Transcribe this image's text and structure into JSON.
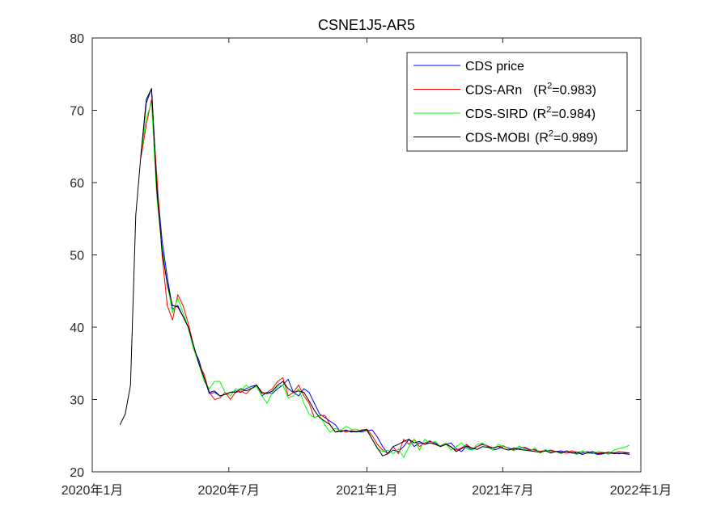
{
  "chart_data": {
    "type": "line",
    "title": "CSNE1J5-AR5",
    "xlabel": "",
    "ylabel": "",
    "ylim": [
      20,
      80
    ],
    "yticks": [
      20,
      30,
      40,
      50,
      60,
      70,
      80
    ],
    "xlim": [
      "2020-01-01",
      "2022-01-01"
    ],
    "xticks": [
      {
        "date": "2020-01-01",
        "label": "2020年1月"
      },
      {
        "date": "2020-07-01",
        "label": "2020年7月"
      },
      {
        "date": "2021-01-01",
        "label": "2021年1月"
      },
      {
        "date": "2021-07-01",
        "label": "2021年7月"
      },
      {
        "date": "2022-01-01",
        "label": "2022年1月"
      }
    ],
    "grid": false,
    "legend_position": "top-right",
    "series": [
      {
        "name": "CDS price",
        "r2": "",
        "color": "#0000ff",
        "x": [
          "2020-03-06",
          "2020-03-13",
          "2020-03-20",
          "2020-03-27",
          "2020-04-03",
          "2020-04-10",
          "2020-04-17",
          "2020-04-24",
          "2020-05-01",
          "2020-05-08",
          "2020-05-15",
          "2020-05-22",
          "2020-05-29",
          "2020-06-05",
          "2020-06-12",
          "2020-06-19",
          "2020-06-26",
          "2020-07-03",
          "2020-07-10",
          "2020-07-17",
          "2020-07-24",
          "2020-07-31",
          "2020-08-07",
          "2020-08-14",
          "2020-08-21",
          "2020-08-28",
          "2020-09-04",
          "2020-09-11",
          "2020-09-18",
          "2020-09-25",
          "2020-10-02",
          "2020-10-09",
          "2020-10-16",
          "2020-10-23",
          "2020-10-30",
          "2020-11-06",
          "2020-11-13",
          "2020-11-20",
          "2020-11-27",
          "2020-12-04",
          "2020-12-11",
          "2020-12-18",
          "2020-12-25",
          "2021-01-01",
          "2021-01-08",
          "2021-01-15",
          "2021-01-22",
          "2021-01-29",
          "2021-02-05",
          "2021-02-12",
          "2021-02-19",
          "2021-02-26",
          "2021-03-05",
          "2021-03-12",
          "2021-03-19",
          "2021-03-26",
          "2021-04-02",
          "2021-04-09",
          "2021-04-16",
          "2021-04-23",
          "2021-04-30",
          "2021-05-07",
          "2021-05-14",
          "2021-05-21",
          "2021-05-28",
          "2021-06-04",
          "2021-06-11",
          "2021-06-18",
          "2021-06-25",
          "2021-07-02",
          "2021-07-09",
          "2021-07-16",
          "2021-07-23",
          "2021-07-30",
          "2021-08-06",
          "2021-08-13",
          "2021-08-20",
          "2021-08-27",
          "2021-09-03",
          "2021-09-10",
          "2021-09-17",
          "2021-09-24",
          "2021-10-01",
          "2021-10-08",
          "2021-10-15",
          "2021-10-22",
          "2021-10-29",
          "2021-11-05",
          "2021-11-12",
          "2021-11-19",
          "2021-11-26",
          "2021-12-03",
          "2021-12-10",
          "2021-12-17"
        ],
        "values": [
          64.0,
          71.0,
          73.0,
          60.0,
          52.0,
          47.0,
          42.5,
          43.0,
          41.5,
          40.0,
          37.0,
          35.5,
          33.0,
          30.8,
          31.0,
          30.5,
          30.7,
          31.0,
          31.2,
          31.0,
          31.5,
          31.8,
          32.0,
          30.5,
          31.0,
          30.8,
          31.5,
          32.0,
          32.8,
          31.0,
          30.5,
          31.5,
          31.0,
          29.5,
          28.0,
          27.5,
          27.0,
          26.5,
          25.5,
          25.8,
          25.5,
          25.6,
          25.5,
          25.7,
          25.8,
          24.8,
          23.5,
          22.5,
          23.0,
          22.8,
          23.5,
          24.5,
          23.5,
          24.0,
          23.8,
          24.2,
          24.0,
          23.5,
          23.8,
          24.0,
          23.2,
          22.8,
          23.5,
          23.0,
          23.5,
          23.8,
          23.5,
          23.0,
          23.2,
          23.5,
          23.3,
          23.0,
          23.2,
          23.4,
          23.1,
          23.0,
          22.8,
          22.9,
          23.0,
          22.8,
          22.9,
          22.6,
          22.7,
          22.5,
          22.6,
          22.8,
          22.6,
          22.4,
          22.5,
          22.7,
          22.5,
          22.6,
          22.5,
          22.4
        ]
      },
      {
        "name": "CDS-ARn",
        "r2": "(R²=0.983)",
        "color": "#ff0000",
        "x": [
          "2020-03-06",
          "2020-03-13",
          "2020-03-20",
          "2020-03-27",
          "2020-04-03",
          "2020-04-10",
          "2020-04-17",
          "2020-04-24",
          "2020-05-01",
          "2020-05-08",
          "2020-05-15",
          "2020-05-22",
          "2020-05-29",
          "2020-06-05",
          "2020-06-12",
          "2020-06-19",
          "2020-06-26",
          "2020-07-03",
          "2020-07-10",
          "2020-07-17",
          "2020-07-24",
          "2020-07-31",
          "2020-08-07",
          "2020-08-14",
          "2020-08-21",
          "2020-08-28",
          "2020-09-04",
          "2020-09-11",
          "2020-09-18",
          "2020-09-25",
          "2020-10-02",
          "2020-10-09",
          "2020-10-16",
          "2020-10-23",
          "2020-10-30",
          "2020-11-06",
          "2020-11-13",
          "2020-11-20",
          "2020-11-27",
          "2020-12-04",
          "2020-12-11",
          "2020-12-18",
          "2020-12-25",
          "2021-01-01",
          "2021-01-08",
          "2021-01-15",
          "2021-01-22",
          "2021-01-29",
          "2021-02-05",
          "2021-02-12",
          "2021-02-19",
          "2021-02-26",
          "2021-03-05",
          "2021-03-12",
          "2021-03-19",
          "2021-03-26",
          "2021-04-02",
          "2021-04-09",
          "2021-04-16",
          "2021-04-23",
          "2021-04-30",
          "2021-05-07",
          "2021-05-14",
          "2021-05-21",
          "2021-05-28",
          "2021-06-04",
          "2021-06-11",
          "2021-06-18",
          "2021-06-25",
          "2021-07-02",
          "2021-07-09",
          "2021-07-16",
          "2021-07-23",
          "2021-07-30",
          "2021-08-06",
          "2021-08-13",
          "2021-08-20",
          "2021-08-27",
          "2021-09-03",
          "2021-09-10",
          "2021-09-17",
          "2021-09-24",
          "2021-10-01",
          "2021-10-08",
          "2021-10-15",
          "2021-10-22",
          "2021-10-29",
          "2021-11-05",
          "2021-11-12",
          "2021-11-19",
          "2021-11-26",
          "2021-12-03",
          "2021-12-10",
          "2021-12-17"
        ],
        "values": [
          63.5,
          68.0,
          71.5,
          61.0,
          50.0,
          43.0,
          41.0,
          44.5,
          43.0,
          40.5,
          37.5,
          35.0,
          33.5,
          31.0,
          30.0,
          30.2,
          31.0,
          30.0,
          31.0,
          31.2,
          30.8,
          31.5,
          32.0,
          30.8,
          31.0,
          31.5,
          32.5,
          33.0,
          30.5,
          31.0,
          32.0,
          30.5,
          29.5,
          27.5,
          27.8,
          27.8,
          26.5,
          25.5,
          25.8,
          25.5,
          25.7,
          25.6,
          25.8,
          25.9,
          25.0,
          23.8,
          23.0,
          22.5,
          23.5,
          22.5,
          24.5,
          23.8,
          24.5,
          23.5,
          24.0,
          24.3,
          23.8,
          23.6,
          24.0,
          23.4,
          23.0,
          23.3,
          23.8,
          23.2,
          23.5,
          23.9,
          23.6,
          23.3,
          23.5,
          23.6,
          23.2,
          23.1,
          23.5,
          23.3,
          23.0,
          23.1,
          22.8,
          23.0,
          22.9,
          22.8,
          22.7,
          22.6,
          22.9,
          22.7,
          22.8,
          22.6,
          22.5,
          22.6,
          22.7,
          22.5,
          22.6,
          22.8,
          22.7,
          22.6
        ]
      },
      {
        "name": "CDS-SIRD",
        "r2": "(R²=0.984)",
        "color": "#00ff00",
        "x": [
          "2020-03-06",
          "2020-03-13",
          "2020-03-20",
          "2020-03-27",
          "2020-04-03",
          "2020-04-10",
          "2020-04-17",
          "2020-04-24",
          "2020-05-01",
          "2020-05-08",
          "2020-05-15",
          "2020-05-22",
          "2020-05-29",
          "2020-06-05",
          "2020-06-12",
          "2020-06-19",
          "2020-06-26",
          "2020-07-03",
          "2020-07-10",
          "2020-07-17",
          "2020-07-24",
          "2020-07-31",
          "2020-08-07",
          "2020-08-14",
          "2020-08-21",
          "2020-08-28",
          "2020-09-04",
          "2020-09-11",
          "2020-09-18",
          "2020-09-25",
          "2020-10-02",
          "2020-10-09",
          "2020-10-16",
          "2020-10-23",
          "2020-10-30",
          "2020-11-06",
          "2020-11-13",
          "2020-11-20",
          "2020-11-27",
          "2020-12-04",
          "2020-12-11",
          "2020-12-18",
          "2020-12-25",
          "2021-01-01",
          "2021-01-08",
          "2021-01-15",
          "2021-01-22",
          "2021-01-29",
          "2021-02-05",
          "2021-02-12",
          "2021-02-19",
          "2021-02-26",
          "2021-03-05",
          "2021-03-12",
          "2021-03-19",
          "2021-03-26",
          "2021-04-02",
          "2021-04-09",
          "2021-04-16",
          "2021-04-23",
          "2021-04-30",
          "2021-05-07",
          "2021-05-14",
          "2021-05-21",
          "2021-05-28",
          "2021-06-04",
          "2021-06-11",
          "2021-06-18",
          "2021-06-25",
          "2021-07-02",
          "2021-07-09",
          "2021-07-16",
          "2021-07-23",
          "2021-07-30",
          "2021-08-06",
          "2021-08-13",
          "2021-08-20",
          "2021-08-27",
          "2021-09-03",
          "2021-09-10",
          "2021-09-17",
          "2021-09-24",
          "2021-10-01",
          "2021-10-08",
          "2021-10-15",
          "2021-10-22",
          "2021-10-29",
          "2021-11-05",
          "2021-11-12",
          "2021-11-19",
          "2021-11-26",
          "2021-12-03",
          "2021-12-10",
          "2021-12-17"
        ],
        "values": [
          64.0,
          69.0,
          71.0,
          58.0,
          51.0,
          46.0,
          42.0,
          44.0,
          42.0,
          40.0,
          37.0,
          35.0,
          32.5,
          31.5,
          32.5,
          32.5,
          31.0,
          30.5,
          31.5,
          31.2,
          32.0,
          31.5,
          31.8,
          30.5,
          29.5,
          31.0,
          31.8,
          32.0,
          30.2,
          30.5,
          31.5,
          29.5,
          28.0,
          27.5,
          27.8,
          26.5,
          25.5,
          26.0,
          25.7,
          26.3,
          25.9,
          25.9,
          25.6,
          25.7,
          24.5,
          23.2,
          22.8,
          23.0,
          22.5,
          23.2,
          22.0,
          23.5,
          24.5,
          23.0,
          24.5,
          24.0,
          24.2,
          23.5,
          24.0,
          23.0,
          23.5,
          24.0,
          23.2,
          23.0,
          23.8,
          24.0,
          23.4,
          23.0,
          23.8,
          23.5,
          23.2,
          22.9,
          23.6,
          23.1,
          22.9,
          23.3,
          22.6,
          23.1,
          22.7,
          22.8,
          22.5,
          22.9,
          22.6,
          22.4,
          22.9,
          22.6,
          22.5,
          22.8,
          22.7,
          22.4,
          23.0,
          23.2,
          23.4,
          23.7
        ]
      },
      {
        "name": "CDS-MOBI",
        "r2": "(R²=0.989)",
        "color": "#000000",
        "x": [
          "2020-02-07",
          "2020-02-14",
          "2020-02-21",
          "2020-02-28",
          "2020-03-06",
          "2020-03-13",
          "2020-03-20",
          "2020-03-27",
          "2020-04-03",
          "2020-04-10",
          "2020-04-17",
          "2020-04-24",
          "2020-05-01",
          "2020-05-08",
          "2020-05-15",
          "2020-05-22",
          "2020-05-29",
          "2020-06-05",
          "2020-06-12",
          "2020-06-19",
          "2020-06-26",
          "2020-07-03",
          "2020-07-10",
          "2020-07-17",
          "2020-07-24",
          "2020-07-31",
          "2020-08-07",
          "2020-08-14",
          "2020-08-21",
          "2020-08-28",
          "2020-09-04",
          "2020-09-11",
          "2020-09-18",
          "2020-09-25",
          "2020-10-02",
          "2020-10-09",
          "2020-10-16",
          "2020-10-23",
          "2020-10-30",
          "2020-11-06",
          "2020-11-13",
          "2020-11-20",
          "2020-11-27",
          "2020-12-04",
          "2020-12-11",
          "2020-12-18",
          "2020-12-25",
          "2021-01-01",
          "2021-01-08",
          "2021-01-15",
          "2021-01-22",
          "2021-01-29",
          "2021-02-05",
          "2021-02-12",
          "2021-02-19",
          "2021-02-26",
          "2021-03-05",
          "2021-03-12",
          "2021-03-19",
          "2021-03-26",
          "2021-04-02",
          "2021-04-09",
          "2021-04-16",
          "2021-04-23",
          "2021-04-30",
          "2021-05-07",
          "2021-05-14",
          "2021-05-21",
          "2021-05-28",
          "2021-06-04",
          "2021-06-11",
          "2021-06-18",
          "2021-06-25",
          "2021-07-02",
          "2021-07-09",
          "2021-07-16",
          "2021-07-23",
          "2021-07-30",
          "2021-08-06",
          "2021-08-13",
          "2021-08-20",
          "2021-08-27",
          "2021-09-03",
          "2021-09-10",
          "2021-09-17",
          "2021-09-24",
          "2021-10-01",
          "2021-10-08",
          "2021-10-15",
          "2021-10-22",
          "2021-10-29",
          "2021-11-05",
          "2021-11-12",
          "2021-11-19",
          "2021-11-26",
          "2021-12-03",
          "2021-12-10",
          "2021-12-17"
        ],
        "values": [
          26.5,
          28.0,
          32.0,
          55.5,
          64.0,
          71.5,
          73.0,
          59.0,
          50.5,
          46.0,
          43.0,
          42.8,
          41.5,
          40.0,
          37.5,
          35.0,
          33.0,
          31.0,
          31.2,
          30.5,
          30.7,
          31.0,
          31.0,
          31.5,
          31.2,
          31.5,
          32.0,
          31.0,
          30.8,
          31.2,
          32.0,
          32.5,
          31.5,
          31.0,
          31.2,
          31.0,
          29.8,
          28.5,
          27.5,
          27.0,
          26.5,
          25.5,
          25.6,
          25.7,
          25.6,
          25.5,
          25.7,
          25.8,
          24.5,
          23.3,
          22.2,
          22.5,
          23.5,
          23.8,
          24.2,
          24.5,
          24.0,
          24.2,
          23.8,
          24.0,
          23.8,
          23.5,
          23.8,
          23.5,
          22.8,
          23.2,
          23.6,
          23.3,
          23.1,
          23.5,
          23.4,
          23.3,
          23.5,
          23.2,
          23.0,
          23.3,
          23.1,
          23.0,
          22.9,
          22.8,
          22.7,
          22.9,
          22.6,
          22.8,
          22.6,
          22.9,
          22.6,
          22.7,
          22.4,
          22.6,
          22.8,
          22.5,
          22.6,
          22.7,
          22.6,
          22.5,
          22.6,
          22.6
        ]
      }
    ]
  }
}
